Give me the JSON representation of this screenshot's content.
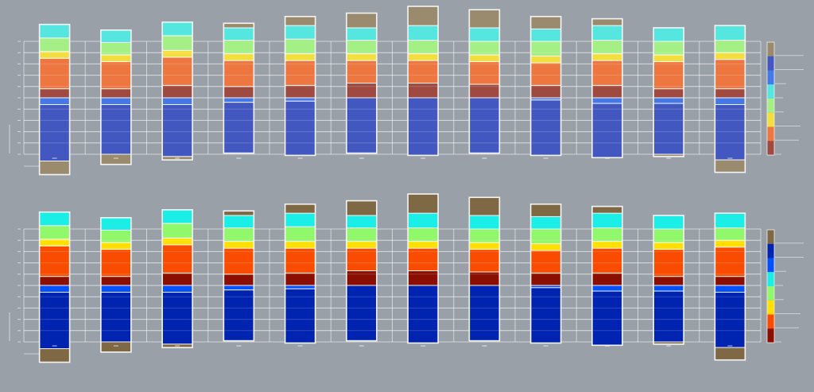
{
  "chart_data": [
    {
      "type": "bar",
      "stacked": true,
      "diverging": true,
      "title": "",
      "xlabel": "",
      "ylabel": "",
      "ylim": [
        -5,
        5
      ],
      "grid": true,
      "legend": "colorbar-right",
      "categories_count": 12,
      "colorbar_order_top_to_bottom": [
        "brown",
        "dark-blue",
        "blue",
        "cyan",
        "green",
        "yellow",
        "orange",
        "dark-red"
      ],
      "colors": {
        "brown": "#9a8a6e",
        "dark-blue": "#4258c0",
        "blue": "#4579e8",
        "cyan": "#55e6df",
        "green": "#a4ef86",
        "yellow": "#f4de3e",
        "orange": "#ee7640",
        "dark-red": "#9e4a40"
      },
      "positive_stack_order": [
        "dark-red",
        "orange",
        "yellow",
        "green",
        "cyan",
        "brown"
      ],
      "negative_stack_order": [
        "blue",
        "dark-blue",
        "brown"
      ],
      "bars": [
        {
          "pos": [
            0.8,
            2.7,
            0.6,
            1.2,
            1.2,
            0.0
          ],
          "neg": [
            0.6,
            5.0,
            1.2
          ]
        },
        {
          "pos": [
            0.8,
            2.4,
            0.6,
            1.1,
            1.1,
            0.0
          ],
          "neg": [
            0.6,
            4.4,
            0.9
          ]
        },
        {
          "pos": [
            1.1,
            2.5,
            0.6,
            1.3,
            1.2,
            0.0
          ],
          "neg": [
            0.6,
            4.6,
            0.3
          ]
        },
        {
          "pos": [
            1.0,
            2.3,
            0.6,
            1.2,
            1.1,
            0.4
          ],
          "neg": [
            0.4,
            4.5,
            0.0
          ]
        },
        {
          "pos": [
            1.1,
            2.2,
            0.6,
            1.3,
            1.2,
            0.8
          ],
          "neg": [
            0.3,
            4.8,
            0.0
          ]
        },
        {
          "pos": [
            1.3,
            2.0,
            0.6,
            1.2,
            1.1,
            1.3
          ],
          "neg": [
            0.0,
            4.9,
            0.0
          ]
        },
        {
          "pos": [
            1.3,
            2.0,
            0.6,
            1.2,
            1.3,
            1.7
          ],
          "neg": [
            0.0,
            5.1,
            0.0
          ]
        },
        {
          "pos": [
            1.2,
            2.0,
            0.6,
            1.2,
            1.2,
            1.6
          ],
          "neg": [
            0.0,
            4.9,
            0.0
          ]
        },
        {
          "pos": [
            1.1,
            2.0,
            0.6,
            1.3,
            1.1,
            1.1
          ],
          "neg": [
            0.2,
            4.9,
            0.0
          ]
        },
        {
          "pos": [
            1.1,
            2.2,
            0.6,
            1.2,
            1.3,
            0.6
          ],
          "neg": [
            0.5,
            4.8,
            0.0
          ]
        },
        {
          "pos": [
            0.8,
            2.4,
            0.6,
            1.2,
            1.2,
            0.0
          ],
          "neg": [
            0.5,
            4.5,
            0.2
          ]
        },
        {
          "pos": [
            0.8,
            2.6,
            0.6,
            1.1,
            1.3,
            0.0
          ],
          "neg": [
            0.6,
            4.9,
            1.1
          ]
        }
      ]
    },
    {
      "type": "bar",
      "stacked": true,
      "diverging": true,
      "title": "",
      "xlabel": "",
      "ylabel": "",
      "ylim": [
        -5,
        5
      ],
      "grid": true,
      "legend": "colorbar-right",
      "categories_count": 12,
      "colorbar_order_top_to_bottom": [
        "brown",
        "dark-blue",
        "blue",
        "cyan",
        "green",
        "yellow",
        "orange",
        "dark-red"
      ],
      "colors": {
        "brown": "#7f6844",
        "dark-blue": "#0023b0",
        "blue": "#0050ff",
        "cyan": "#1aeee6",
        "green": "#90f86a",
        "yellow": "#ffe000",
        "orange": "#fa4c00",
        "dark-red": "#8a0f00"
      },
      "positive_stack_order": [
        "dark-red",
        "orange",
        "yellow",
        "green",
        "cyan",
        "brown"
      ],
      "negative_stack_order": [
        "blue",
        "dark-blue",
        "brown"
      ],
      "bars": [
        {
          "pos": [
            0.8,
            2.7,
            0.6,
            1.2,
            1.2,
            0.0
          ],
          "neg": [
            0.6,
            5.0,
            1.2
          ]
        },
        {
          "pos": [
            0.8,
            2.4,
            0.6,
            1.1,
            1.1,
            0.0
          ],
          "neg": [
            0.6,
            4.4,
            0.9
          ]
        },
        {
          "pos": [
            1.1,
            2.5,
            0.6,
            1.3,
            1.2,
            0.0
          ],
          "neg": [
            0.6,
            4.6,
            0.3
          ]
        },
        {
          "pos": [
            1.0,
            2.3,
            0.6,
            1.2,
            1.1,
            0.4
          ],
          "neg": [
            0.4,
            4.5,
            0.0
          ]
        },
        {
          "pos": [
            1.1,
            2.2,
            0.6,
            1.3,
            1.2,
            0.8
          ],
          "neg": [
            0.3,
            4.8,
            0.0
          ]
        },
        {
          "pos": [
            1.3,
            2.0,
            0.6,
            1.2,
            1.1,
            1.3
          ],
          "neg": [
            0.0,
            4.9,
            0.0
          ]
        },
        {
          "pos": [
            1.3,
            2.0,
            0.6,
            1.2,
            1.3,
            1.7
          ],
          "neg": [
            0.0,
            5.1,
            0.0
          ]
        },
        {
          "pos": [
            1.2,
            2.0,
            0.6,
            1.2,
            1.2,
            1.6
          ],
          "neg": [
            0.0,
            4.9,
            0.0
          ]
        },
        {
          "pos": [
            1.1,
            2.0,
            0.6,
            1.3,
            1.1,
            1.1
          ],
          "neg": [
            0.2,
            4.9,
            0.0
          ]
        },
        {
          "pos": [
            1.1,
            2.2,
            0.6,
            1.2,
            1.3,
            0.6
          ],
          "neg": [
            0.5,
            4.8,
            0.0
          ]
        },
        {
          "pos": [
            0.8,
            2.4,
            0.6,
            1.2,
            1.2,
            0.0
          ],
          "neg": [
            0.5,
            4.5,
            0.2
          ]
        },
        {
          "pos": [
            0.8,
            2.6,
            0.6,
            1.1,
            1.3,
            0.0
          ],
          "neg": [
            0.6,
            4.9,
            1.1
          ]
        }
      ]
    }
  ]
}
